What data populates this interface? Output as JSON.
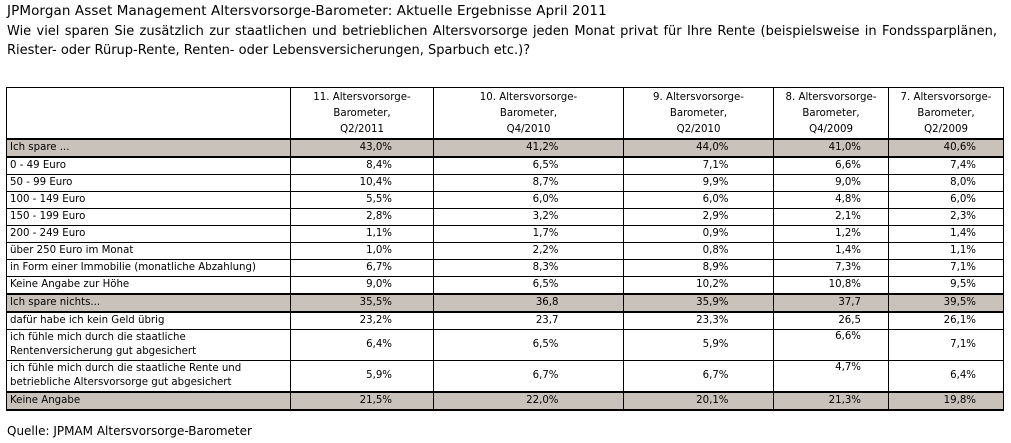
{
  "title": "JPMorgan Asset Management Altersvorsorge-Barometer: Aktuelle Ergebnisse April 2011",
  "question": "Wie viel sparen Sie zusätzlich zur staatlichen und betrieblichen Altersvorsorge jeden Monat privat für Ihre Rente (beispielsweise in Fondssparplänen, Riester- oder Rürup-Rente, Renten- oder Lebensversicherungen, Sparbuch etc.)?",
  "table": {
    "columns": [
      {
        "line1": "11. Altersvorsorge-",
        "line2": "Barometer,",
        "line3": "Q2/2011"
      },
      {
        "line1": "10. Altersvorsorge-",
        "line2": "Barometer,",
        "line3": "Q4/2010"
      },
      {
        "line1": "9. Altersvorsorge-",
        "line2": "Barometer,",
        "line3": "Q2/2010"
      },
      {
        "line1": "8. Altersvorsorge-",
        "line2": "Barometer,",
        "line3": "Q4/2009"
      },
      {
        "line1": "7. Altersvorsorge-",
        "line2": "Barometer,",
        "line3": "Q2/2009"
      }
    ],
    "rows": [
      {
        "label": "Ich spare ...",
        "values": [
          "43,0%",
          "41,2%",
          "44,0%",
          "41,0%",
          "40,6%"
        ]
      },
      {
        "label": "0 - 49 Euro",
        "values": [
          "8,4%",
          "6,5%",
          "7,1%",
          "6,6%",
          "7,4%"
        ]
      },
      {
        "label": "50 - 99 Euro",
        "values": [
          "10,4%",
          "8,7%",
          "9,9%",
          "9,0%",
          "8,0%"
        ]
      },
      {
        "label": "100 - 149 Euro",
        "values": [
          "5,5%",
          "6,0%",
          "6,0%",
          "4,8%",
          "6,0%"
        ]
      },
      {
        "label": "150 - 199 Euro",
        "values": [
          "2,8%",
          "3,2%",
          "2,9%",
          "2,1%",
          "2,3%"
        ]
      },
      {
        "label": "200 - 249  Euro",
        "values": [
          "1,1%",
          "1,7%",
          "0,9%",
          "1,2%",
          "1,4%"
        ]
      },
      {
        "label": "über 250 Euro im Monat",
        "values": [
          "1,0%",
          "2,2%",
          "0,8%",
          "1,4%",
          "1,1%"
        ]
      },
      {
        "label": "in Form einer Immobilie (monatliche Abzahlung)",
        "values": [
          "6,7%",
          "8,3%",
          "8,9%",
          "7,3%",
          "7,1%"
        ]
      },
      {
        "label": "Keine Angabe zur Höhe",
        "values": [
          "9,0%",
          "6,5%",
          "10,2%",
          "10,8%",
          "9,5%"
        ]
      },
      {
        "label": "Ich spare nichts...",
        "values": [
          "35,5%",
          "36,8",
          "35,9%",
          "37,7",
          "39,5%"
        ]
      },
      {
        "label": "dafür habe ich kein Geld übrig",
        "values": [
          "23,2%",
          "23,7",
          "23,3%",
          "26,5",
          "26,1%"
        ]
      },
      {
        "label": "ich fühle mich durch die staatliche Rentenversicherung gut abgesichert",
        "values": [
          "6,4%",
          "6,5%",
          "5,9%",
          "6,6%",
          "7,1%"
        ]
      },
      {
        "label": "ich fühle mich durch die staatliche Rente und betriebliche Altersvorsorge gut abgesichert",
        "values": [
          "5,9%",
          "6,7%",
          "6,7%",
          "4,7%",
          "6,4%"
        ]
      },
      {
        "label": "Keine Angabe",
        "values": [
          "21,5%",
          "22,0%",
          "20,1%",
          "21,3%",
          "19,8%"
        ]
      }
    ]
  },
  "source": "Quelle: JPMAM Altersvorsorge-Barometer"
}
